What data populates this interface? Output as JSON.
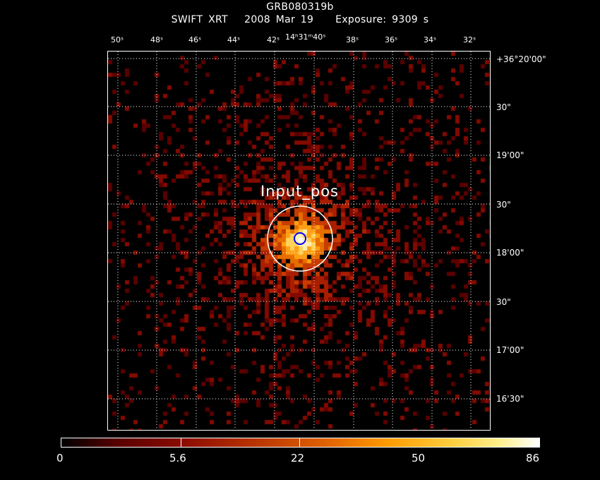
{
  "header": {
    "title": "GRB080319b",
    "subtitle": "SWIFT XRT   2008 Mar 19    Exposure: 9309 s"
  },
  "image": {
    "source_label": "Input_pos",
    "colors": {
      "background": "#000000",
      "grid": "#ffffff",
      "source_circle": "#ffffff",
      "centroid_circle": "#0000ff",
      "accent": "#ff9a00"
    }
  },
  "axes": {
    "ra_ticks": [
      "50ˢ",
      "48ˢ",
      "46ˢ",
      "44ˢ",
      "42ˢ",
      "14ʰ31ᵐ40ˢ",
      "38ˢ",
      "36ˢ",
      "34ˢ",
      "32ˢ"
    ],
    "dec_ticks": [
      "+36°20'00\"",
      "30\"",
      "19'00\"",
      "30\"",
      "18'00\"",
      "30\"",
      "17'00\"",
      "16'30\""
    ]
  },
  "colorbar": {
    "labels": [
      "0",
      "5.6",
      "22",
      "50",
      "86"
    ]
  }
}
